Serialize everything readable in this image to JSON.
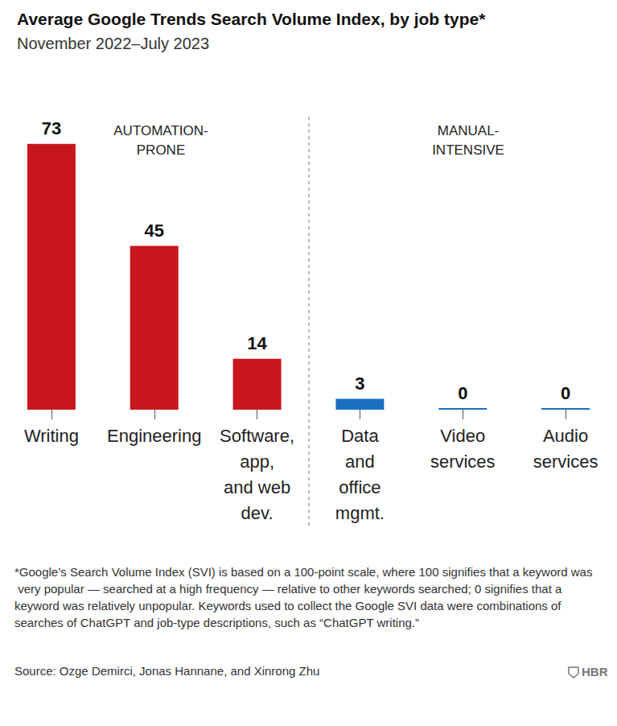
{
  "chart_data": {
    "type": "bar",
    "title": "Average Google Trends Search Volume Index, by job type*",
    "subtitle": "November 2022–July 2023",
    "categories": [
      "Writing",
      "Engineering",
      "Software,\napp,\nand web\ndev.",
      "Data\nand\noffice\nmgmt.",
      "Video\nservices",
      "Audio\nservices"
    ],
    "values": [
      73,
      45,
      14,
      3,
      0,
      0
    ],
    "colors": [
      "#c8161d",
      "#c8161d",
      "#c8161d",
      "#1b6fc0",
      "#1b6fc0",
      "#1b6fc0"
    ],
    "annotations": [
      "AUTOMATION-\nPRONE",
      "MANUAL-\nINTENSIVE"
    ],
    "footnote": "*Google’s Search Volume Index (SVI) is based on a 100-point scale, where 100 signifies that a keyword was very popular — searched at a high frequency — relative to other keywords searched; 0 signifies that a keyword was relatively unpopular. Keywords used to collect the Google SVI data were combinations of searches of ChatGPT and job-type descriptions, such as “ChatGPT writing.”",
    "source": "Source: Ozge Demirci, Jonas Hannane, and Xinrong Zhu",
    "logo": "HBR",
    "ylim": [
      0,
      80
    ],
    "data_labels": true,
    "tick_labels": "x",
    "grid": false
  }
}
